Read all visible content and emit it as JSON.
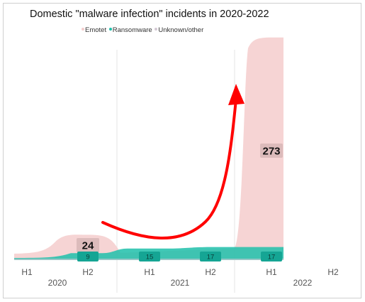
{
  "chart_data": {
    "type": "area",
    "title": "Domestic \"malware infection\" incidents in 2020-2022",
    "categories": [
      "H1",
      "H2",
      "H1",
      "H2",
      "H1",
      "H2"
    ],
    "years": [
      "2020",
      "2021",
      "2022"
    ],
    "series": [
      {
        "name": "Emotet",
        "color": "#f4cccc",
        "values": [
          null,
          24,
          null,
          null,
          273,
          null
        ]
      },
      {
        "name": "Ransomware",
        "color": "#1fbfaa",
        "values": [
          null,
          9,
          15,
          17,
          17,
          null
        ]
      },
      {
        "name": "Unknown/other",
        "color": "#d4c9d4",
        "values": [
          null,
          null,
          null,
          null,
          null,
          null
        ]
      }
    ],
    "data_labels": [
      {
        "series": "Emotet",
        "category_index": 1,
        "text": "24"
      },
      {
        "series": "Emotet",
        "category_index": 4,
        "text": "273"
      },
      {
        "series": "Ransomware",
        "category_index": 1,
        "text": "9"
      },
      {
        "series": "Ransomware",
        "category_index": 2,
        "text": "15"
      },
      {
        "series": "Ransomware",
        "category_index": 3,
        "text": "17"
      },
      {
        "series": "Ransomware",
        "category_index": 4,
        "text": "17"
      }
    ],
    "annotation": {
      "type": "arrow",
      "color": "#ff0000"
    },
    "legend_position": "top",
    "grid": false
  }
}
